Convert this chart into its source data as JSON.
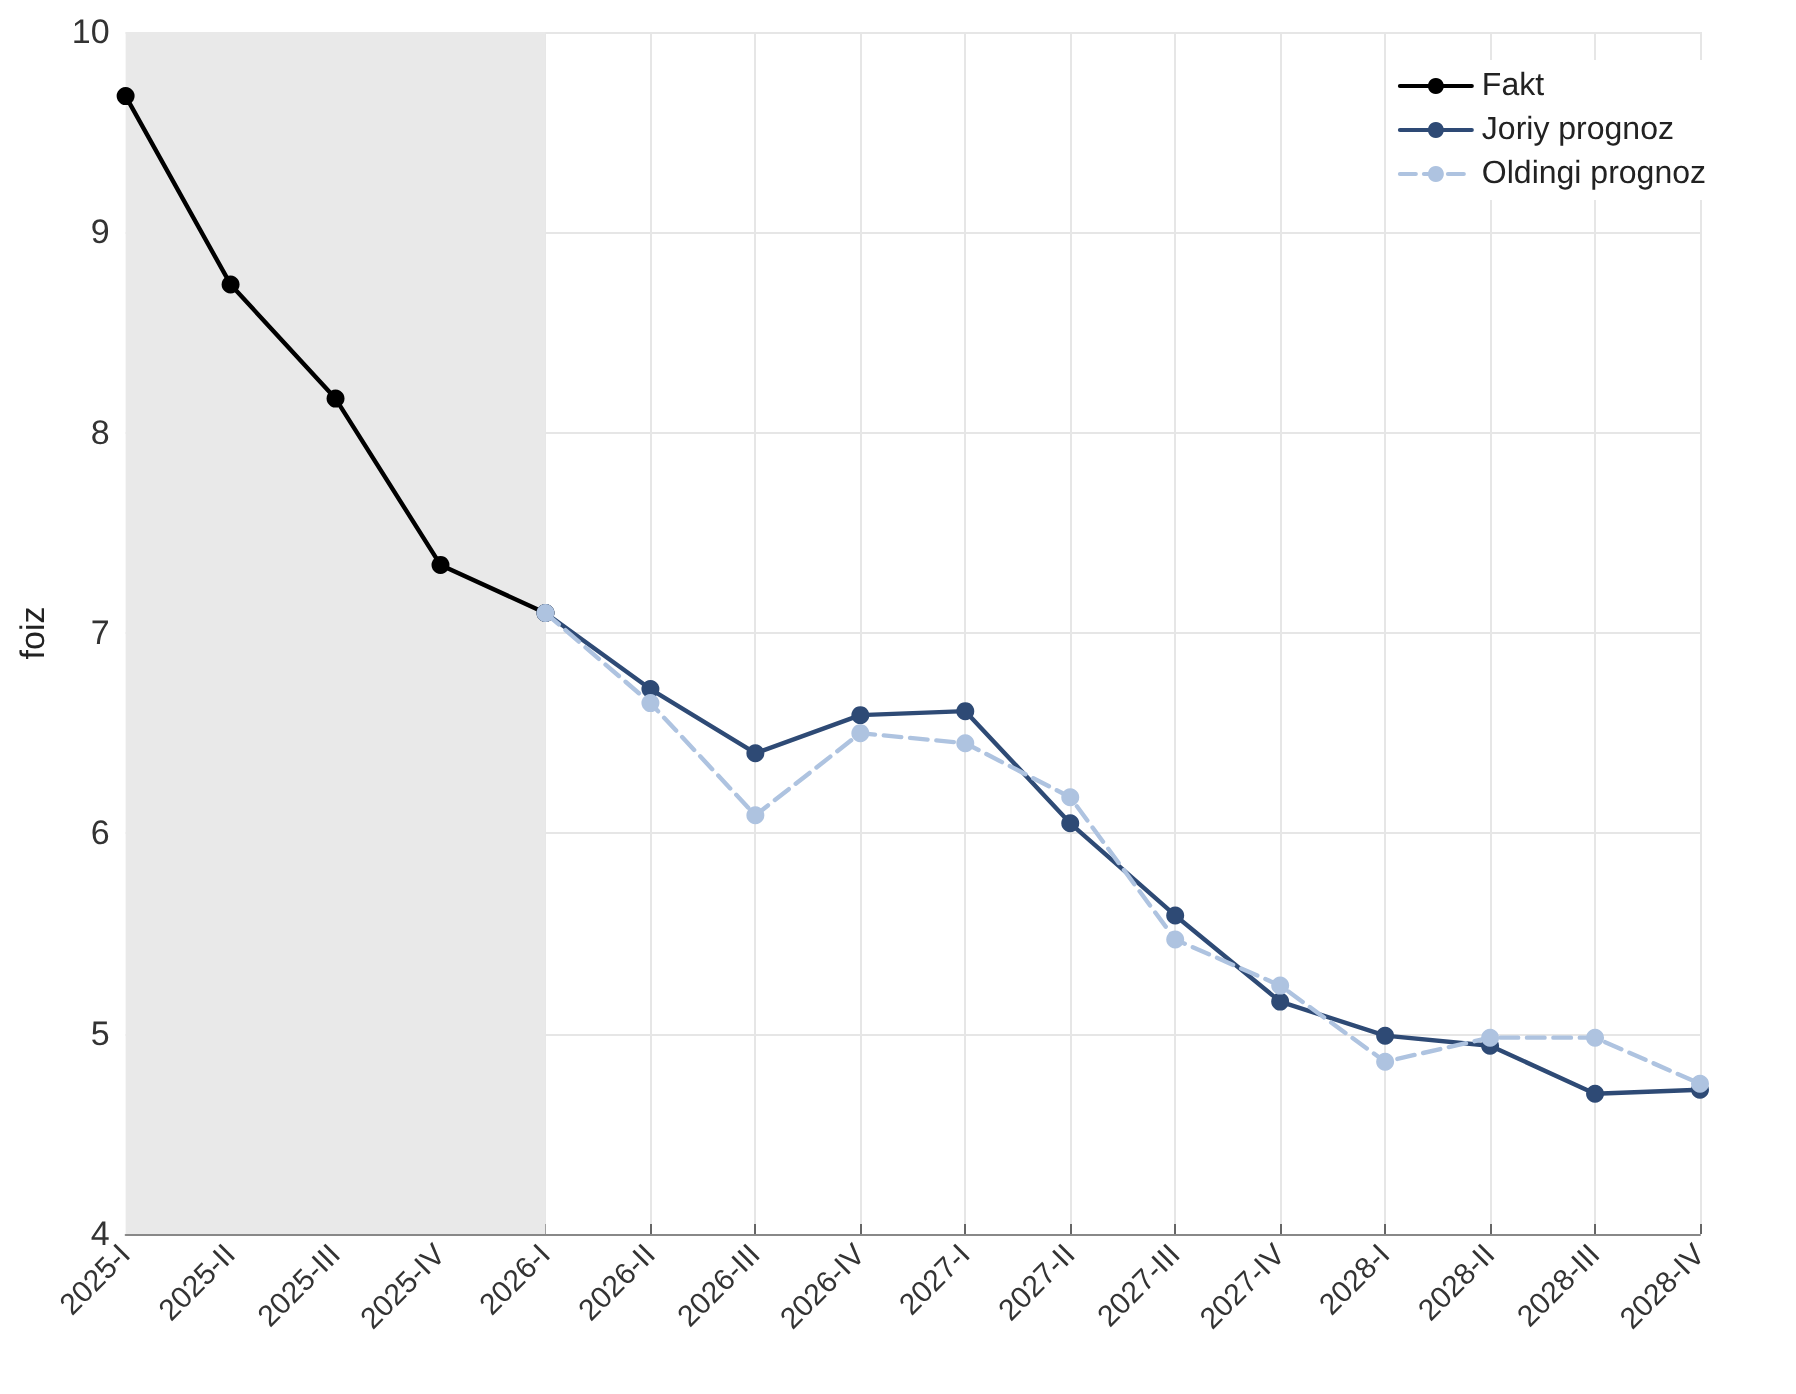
{
  "chart_data": {
    "type": "line",
    "ylabel": "foiz",
    "categories": [
      "2025-I",
      "2025-II",
      "2025-III",
      "2025-IV",
      "2026-I",
      "2026-II",
      "2026-III",
      "2026-IV",
      "2027-I",
      "2027-II",
      "2027-III",
      "2027-IV",
      "2028-I",
      "2028-II",
      "2028-III",
      "2028-IV"
    ],
    "series": [
      {
        "name": "Fakt",
        "color": "#000000",
        "line_style": "solid",
        "values": [
          9.68,
          8.74,
          8.17,
          7.34,
          7.1,
          null,
          null,
          null,
          null,
          null,
          null,
          null,
          null,
          null,
          null,
          null
        ]
      },
      {
        "name": "Joriy prognoz",
        "color": "#2e4a75",
        "line_style": "solid",
        "values": [
          null,
          null,
          null,
          null,
          7.1,
          6.72,
          6.4,
          6.59,
          6.61,
          6.05,
          5.59,
          5.16,
          4.99,
          4.94,
          4.7,
          4.72
        ]
      },
      {
        "name": "Oldingi prognoz",
        "color": "#aec3e0",
        "line_style": "dashed",
        "values": [
          null,
          null,
          null,
          null,
          7.1,
          6.65,
          6.09,
          6.5,
          6.45,
          6.18,
          5.47,
          5.24,
          4.86,
          4.98,
          4.98,
          4.75
        ]
      }
    ],
    "ylim": [
      4,
      10
    ],
    "yticks": [
      4,
      5,
      6,
      7,
      8,
      9,
      10
    ],
    "bands": [
      {
        "axis": "x",
        "from": "2025-I",
        "to": "2026-I",
        "color": "#e9e9e9"
      }
    ],
    "grid": true,
    "legend": "top right",
    "marker": "circle"
  }
}
